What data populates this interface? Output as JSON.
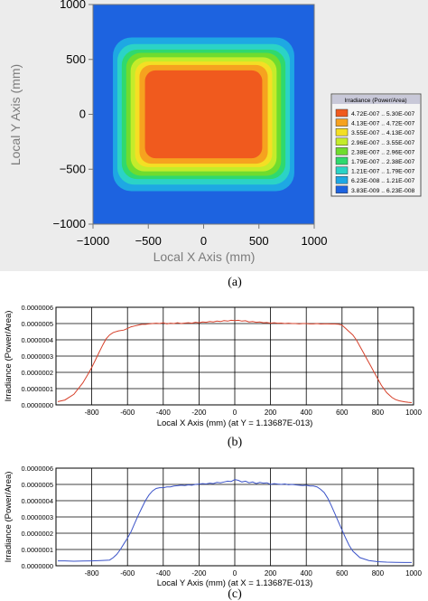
{
  "panel_labels": [
    "(a)",
    "(b)",
    "(c)"
  ],
  "colors": {
    "background": "#ffffff",
    "panel_bg": "#ececec",
    "grid": "#000000",
    "line_b": "#d6402a",
    "line_c": "#3b53c8",
    "axis_text": "#7c7c7c"
  },
  "chart_data": [
    {
      "type": "heatmap",
      "xlabel": "Local X Axis (mm)",
      "ylabel": "Local Y Axis (mm)",
      "xlim": [
        -1000,
        1000
      ],
      "ylim": [
        -1000,
        1000
      ],
      "x_ticks": [
        "−1000",
        "−500",
        "0",
        "500",
        "1000"
      ],
      "y_ticks": [
        "1000",
        "500",
        "0",
        "−500",
        "−1000"
      ],
      "legend_title": "Irradiance (Power/Area)",
      "legend_entries": [
        {
          "label": "4.72E-007 .. 5.30E-007",
          "color": "#f05a1e"
        },
        {
          "label": "4.13E-007 .. 4.72E-007",
          "color": "#f6a21f"
        },
        {
          "label": "3.55E-007 .. 4.13E-007",
          "color": "#f4df24"
        },
        {
          "label": "2.96E-007 .. 3.55E-007",
          "color": "#c4ec2b"
        },
        {
          "label": "2.38E-007 .. 2.96E-007",
          "color": "#6fdc2e"
        },
        {
          "label": "1.79E-007 .. 2.38E-007",
          "color": "#2fd96e"
        },
        {
          "label": "1.21E-007 .. 1.79E-007",
          "color": "#2bd3c6"
        },
        {
          "label": "6.23E-008 .. 1.21E-007",
          "color": "#1ea8e3"
        },
        {
          "label": "3.83E-009 .. 6.23E-008",
          "color": "#1d63e0"
        }
      ],
      "contour_regions": [
        {
          "range": "6.23E-008 .. 1.21E-007",
          "x": [
            -820,
            820
          ],
          "y": [
            -700,
            700
          ]
        },
        {
          "range": "1.21E-007 .. 1.79E-007",
          "x": [
            -780,
            780
          ],
          "y": [
            -640,
            640
          ]
        },
        {
          "range": "1.79E-007 .. 2.38E-007",
          "x": [
            -740,
            740
          ],
          "y": [
            -590,
            590
          ]
        },
        {
          "range": "2.38E-007 .. 2.96E-007",
          "x": [
            -700,
            700
          ],
          "y": [
            -560,
            560
          ]
        },
        {
          "range": "2.96E-007 .. 3.55E-007",
          "x": [
            -660,
            660
          ],
          "y": [
            -520,
            520
          ]
        },
        {
          "range": "3.55E-007 .. 4.13E-007",
          "x": [
            -620,
            620
          ],
          "y": [
            -480,
            480
          ]
        },
        {
          "range": "4.13E-007 .. 4.72E-007",
          "x": [
            -580,
            580
          ],
          "y": [
            -450,
            450
          ]
        },
        {
          "range": "4.72E-007 .. 5.30E-007",
          "x": [
            -530,
            530
          ],
          "y": [
            -400,
            400
          ]
        }
      ]
    },
    {
      "type": "line",
      "xlabel": "Local X Axis (mm) (at Y = 1.13687E-013)",
      "ylabel": "Irradiance (Power/Area)",
      "xlim": [
        -1000,
        1000
      ],
      "ylim": [
        0,
        6e-07
      ],
      "x_ticks": [
        "-800",
        "-600",
        "-400",
        "-200",
        "0",
        "200",
        "400",
        "600",
        "800",
        "1000"
      ],
      "y_ticks": [
        "0.0000006",
        "0.0000005",
        "0.0000004",
        "0.0000003",
        "0.0000002",
        "0.0000001",
        "0.0000000"
      ],
      "x": [
        -990,
        -950,
        -900,
        -850,
        -820,
        -800,
        -780,
        -760,
        -740,
        -720,
        -700,
        -680,
        -650,
        -620,
        -600,
        -580,
        -560,
        -540,
        -520,
        -500,
        -480,
        -460,
        -440,
        -420,
        -400,
        -380,
        -360,
        -340,
        -320,
        -300,
        -280,
        -260,
        -240,
        -220,
        -200,
        -180,
        -160,
        -140,
        -120,
        -100,
        -80,
        -60,
        -40,
        -20,
        0,
        20,
        40,
        60,
        80,
        100,
        120,
        140,
        160,
        180,
        200,
        220,
        240,
        260,
        280,
        300,
        320,
        340,
        360,
        380,
        400,
        420,
        440,
        460,
        480,
        500,
        520,
        540,
        560,
        580,
        600,
        620,
        640,
        660,
        680,
        700,
        720,
        740,
        760,
        780,
        800,
        820,
        850,
        880,
        900,
        920,
        950,
        970,
        990
      ],
      "y": [
        2e-08,
        3e-08,
        6.5e-08,
        1.35e-07,
        1.9e-07,
        2.3e-07,
        2.75e-07,
        3.2e-07,
        3.65e-07,
        4.05e-07,
        4.3e-07,
        4.45e-07,
        4.55e-07,
        4.6e-07,
        4.7e-07,
        4.8e-07,
        4.85e-07,
        4.9e-07,
        4.95e-07,
        4.95e-07,
        4.98e-07,
        5e-07,
        5.02e-07,
        5e-07,
        5.05e-07,
        4.98e-07,
        5.02e-07,
        5e-07,
        5.05e-07,
        5e-07,
        5.03e-07,
        5.05e-07,
        5.02e-07,
        5.08e-07,
        5.05e-07,
        5.1e-07,
        5.08e-07,
        5.12e-07,
        5.1e-07,
        5.15e-07,
        5.12e-07,
        5.18e-07,
        5.15e-07,
        5.2e-07,
        5.18e-07,
        5.2e-07,
        5.15e-07,
        5.17e-07,
        5.1e-07,
        5.12e-07,
        5.08e-07,
        5.1e-07,
        5.05e-07,
        5.06e-07,
        5.02e-07,
        5.05e-07,
        5.02e-07,
        5.03e-07,
        5e-07,
        5.02e-07,
        5e-07,
        5e-07,
        4.98e-07,
        5e-07,
        5e-07,
        4.98e-07,
        4.98e-07,
        5e-07,
        4.97e-07,
        4.98e-07,
        4.98e-07,
        4.97e-07,
        4.97e-07,
        4.96e-07,
        4.9e-07,
        4.7e-07,
        4.5e-07,
        4.3e-07,
        4e-07,
        3.6e-07,
        3.2e-07,
        2.8e-07,
        2.4e-07,
        2e-07,
        1.6e-07,
        1.2e-07,
        7.5e-08,
        4.5e-08,
        3.2e-08,
        2.5e-08,
        1.9e-08,
        1.6e-08,
        1.4e-08
      ]
    },
    {
      "type": "line",
      "xlabel": "Local Y Axis (mm) (at X = 1.13687E-013)",
      "ylabel": "Irradiance (Power/Area)",
      "xlim": [
        -1000,
        1000
      ],
      "ylim": [
        0,
        6e-07
      ],
      "x_ticks": [
        "-800",
        "-600",
        "-400",
        "-200",
        "0",
        "200",
        "400",
        "600",
        "800",
        "1000"
      ],
      "y_ticks": [
        "0.0000006",
        "0.0000005",
        "0.0000004",
        "0.0000003",
        "0.0000002",
        "0.0000001",
        "0.0000000"
      ],
      "x": [
        -990,
        -950,
        -900,
        -850,
        -800,
        -750,
        -700,
        -680,
        -660,
        -640,
        -620,
        -600,
        -580,
        -560,
        -540,
        -520,
        -500,
        -480,
        -460,
        -440,
        -420,
        -400,
        -380,
        -360,
        -340,
        -320,
        -300,
        -280,
        -260,
        -240,
        -220,
        -200,
        -180,
        -160,
        -140,
        -120,
        -100,
        -80,
        -60,
        -40,
        -20,
        0,
        20,
        40,
        60,
        80,
        100,
        120,
        140,
        160,
        180,
        200,
        220,
        240,
        260,
        280,
        300,
        320,
        340,
        360,
        380,
        400,
        420,
        440,
        460,
        480,
        500,
        520,
        540,
        560,
        580,
        600,
        620,
        640,
        660,
        700,
        750,
        800,
        850,
        900,
        950,
        990
      ],
      "y": [
        3e-08,
        3e-08,
        2.8e-08,
        2.9e-08,
        3e-08,
        3.2e-08,
        3.5e-08,
        5e-08,
        7e-08,
        1e-07,
        1.35e-07,
        1.7e-07,
        2.1e-07,
        2.6e-07,
        3.1e-07,
        3.55e-07,
        4e-07,
        4.35e-07,
        4.6e-07,
        4.75e-07,
        4.8e-07,
        4.8e-07,
        4.85e-07,
        4.85e-07,
        4.9e-07,
        4.92e-07,
        4.95e-07,
        4.93e-07,
        4.97e-07,
        4.95e-07,
        5e-07,
        5.02e-07,
        5.05e-07,
        5.03e-07,
        5.08e-07,
        5.05e-07,
        5.12e-07,
        5.1e-07,
        5.15e-07,
        5.2e-07,
        5.18e-07,
        5.3e-07,
        5.25e-07,
        5.15e-07,
        5.2e-07,
        5.1e-07,
        5.15e-07,
        5.05e-07,
        5.12e-07,
        5.08e-07,
        5.1e-07,
        5e-07,
        5.05e-07,
        5.02e-07,
        5e-07,
        5.03e-07,
        4.98e-07,
        5e-07,
        4.97e-07,
        4.95e-07,
        4.93e-07,
        4.95e-07,
        4.9e-07,
        4.9e-07,
        4.85e-07,
        4.7e-07,
        4.5e-07,
        4.15e-07,
        3.7e-07,
        3.2e-07,
        2.7e-07,
        2.2e-07,
        1.7e-07,
        1.25e-07,
        9e-08,
        5e-08,
        3.2e-08,
        2.5e-08,
        2.2e-08,
        2.1e-08,
        2e-08,
        2e-08
      ]
    }
  ]
}
